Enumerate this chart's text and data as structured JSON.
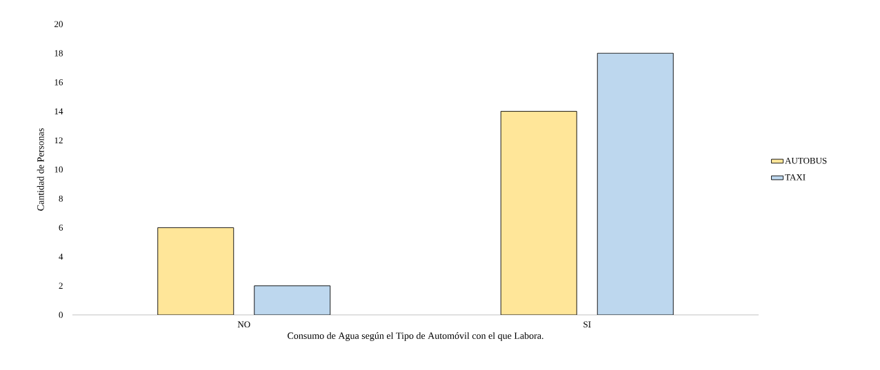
{
  "chart_data": {
    "type": "bar",
    "xlabel": "Consumo de Agua según el Tipo de Automóvil con el que Labora.",
    "ylabel": "Cantidad de Personas",
    "categories": [
      "NO",
      "SI"
    ],
    "series": [
      {
        "name": "AUTOBUS",
        "color": "#ffe699",
        "values": [
          6,
          14
        ]
      },
      {
        "name": "TAXI",
        "color": "#bdd7ee",
        "values": [
          2,
          18
        ]
      }
    ],
    "ylim": [
      0,
      20
    ],
    "yticks": [
      0,
      2,
      4,
      6,
      8,
      10,
      12,
      14,
      16,
      18,
      20
    ],
    "grid": false,
    "legend": "right"
  }
}
